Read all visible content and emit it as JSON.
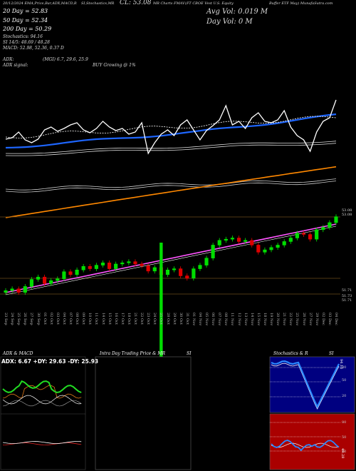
{
  "header": {
    "line1_left": "20/12/2024 EMA,Price,Bar,ADX,MACD,R",
    "line1_mid": "SI,Stochastics,MR",
    "cl_label": "CL: 53.08",
    "line1_mid2": "MR Charts FMAV",
    "line1_right1": "(FT CBOE Vest U.S. Equity",
    "line1_right2": "Buffer ETF May) MunafaSutra.com",
    "avg_vol": "Avg Vol: 0.019  M",
    "day_vol": "Day Vol: 0   M"
  },
  "sma_labels": [
    "20   Day  = 52.83",
    "50   Day  = 52.34",
    "200  Day  = 50.29"
  ],
  "indicators": [
    "Stochastics: 94.16",
    "SI 14/5: 48.69 / 48.28",
    "MACD: 52.98, 52.36, 0.37 D"
  ],
  "adx_lines": {
    "adx_label": "ADX:",
    "adx_value": "(MGI) 6.7, 29.6, 25.9",
    "signal_label": "ADX signal:",
    "signal_value": "BUY Growing @ 1%"
  },
  "price_labels": {
    "top1": "53.08",
    "top2": "53.08",
    "low1": "51.71",
    "low2": "51.73",
    "low3": "51.71"
  },
  "dates": [
    "23 Sep",
    "24 Sep",
    "25 Sep",
    "26 Sep",
    "27 Sep",
    "30 Sep",
    "01 Oct",
    "02 Oct",
    "03 Oct",
    "04 Oct",
    "07 Oct",
    "08 Oct",
    "09 Oct",
    "10 Oct",
    "11 Oct",
    "14 Oct",
    "15 Oct",
    "16 Oct",
    "17 Oct",
    "18 Oct",
    "21 Oct",
    "22 Oct",
    "23 Oct",
    "24 Oct",
    "25 Oct",
    "28 Oct",
    "29 Oct",
    "30 Oct",
    "31 Oct",
    "01 Nov",
    "04 Nov",
    "05 Nov",
    "06 Nov",
    "07 Nov",
    "08 Nov",
    "11 Nov",
    "12 Nov",
    "13 Nov",
    "14 Nov",
    "15 Nov",
    "18 Nov",
    "19 Nov",
    "20 Nov",
    "21 Nov",
    "22 Nov",
    "25 Nov",
    "26 Nov",
    "27 Nov",
    "29 Nov",
    "02 Dec",
    "03 Dec",
    "04 Dec"
  ],
  "panels": {
    "adx_title": "ADX  & MACD",
    "adx_readout": "ADX: 6.67  +DY: 29.63  -DY: 25.93",
    "intra_title": "Intra  Day Trading Price  & MR",
    "intra_si": "SI",
    "stoch_title": "Stochastics & R",
    "stoch_si": "SI",
    "stoch_ticks": [
      "80",
      "50",
      "20"
    ],
    "si_ticks": [
      "80",
      "50",
      "20"
    ],
    "stoch_value_tag": "94.16",
    "si_value_tag": "48.28"
  },
  "colors": {
    "sma20": "#ffffff",
    "sma50": "#1e66ff",
    "sma200": "#ff8800",
    "bb": "#dddddd",
    "pink_line": "#ff55ff",
    "bull": "#00ee00",
    "bear": "#ee0000",
    "stoch_bg": "#000080",
    "si_bg": "#aa0000",
    "grid": "#6b4a1a"
  },
  "chart_data": {
    "type": "candlestick",
    "title": "FMAV EMA, Price, Bar, ADX, MACD, RSI, Stochastics",
    "categories_ref": "dates",
    "series": [
      {
        "name": "Close",
        "values": [
          51.83,
          51.86,
          51.8,
          51.9,
          52.02,
          52.06,
          51.95,
          52.0,
          52.03,
          52.15,
          52.1,
          52.18,
          52.24,
          52.2,
          52.26,
          52.3,
          52.2,
          52.28,
          52.3,
          52.32,
          52.28,
          52.25,
          52.16,
          52.22,
          52.1,
          52.18,
          52.2,
          52.08,
          52.04,
          52.2,
          52.26,
          52.38,
          52.6,
          52.68,
          52.7,
          52.72,
          52.66,
          52.68,
          52.6,
          52.48,
          52.52,
          52.56,
          52.6,
          52.66,
          52.72,
          52.8,
          52.78,
          52.7,
          52.86,
          52.9,
          52.98,
          53.08
        ]
      }
    ],
    "ylim": [
      51.7,
      53.1
    ]
  }
}
